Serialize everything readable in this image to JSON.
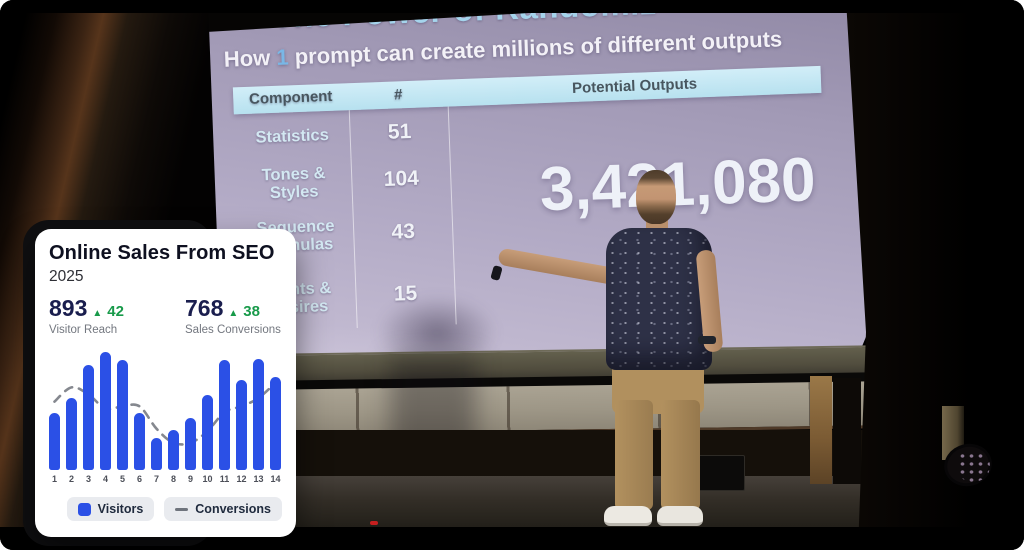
{
  "colors": {
    "bar_blue": "#2b50e6",
    "positive_green": "#189a4a",
    "stat_navy": "#1a1e4e",
    "conversion_line_grey": "#85888f",
    "slide_title_blue": "#a5d4ec",
    "slide_header_bg": "#c3e7f3",
    "screen_lavender": "#b9b1c9",
    "legend_pill_bg": "#e9ebef"
  },
  "icons": {
    "delta_up": "▲"
  },
  "scene": {
    "slide": {
      "title": "The Power of Randomiz",
      "subtitle": {
        "part1": "How",
        "highlight": "1",
        "part2": "prompt can create millions of different outputs"
      },
      "table": {
        "headers": [
          "Component",
          "#",
          "Potential Outputs"
        ],
        "rows": [
          {
            "label": "Statistics",
            "count": "51"
          },
          {
            "label": "Tones & Styles",
            "count": "104"
          },
          {
            "label": "Sequence\nFormulas",
            "count": "43"
          },
          {
            "label": "Points &\nDesires",
            "count": "15"
          }
        ],
        "big_number": "3,421,080"
      }
    }
  },
  "card": {
    "title": "Online Sales From SEO",
    "year": "2025",
    "stats": [
      {
        "value": "893",
        "delta": "42",
        "delta_direction": "up",
        "label": "Visitor Reach"
      },
      {
        "value": "768",
        "delta": "38",
        "delta_direction": "up",
        "label": "Sales Conversions"
      }
    ],
    "legend": [
      {
        "label": "Visitors",
        "swatch": "blue-square"
      },
      {
        "label": "Conversions",
        "swatch": "grey-dash"
      }
    ]
  },
  "chart_data": {
    "type": "bar",
    "title": "Online Sales From SEO",
    "subtitle": "2025",
    "categories": [
      "1",
      "2",
      "3",
      "4",
      "5",
      "6",
      "7",
      "8",
      "9",
      "10",
      "11",
      "12",
      "13",
      "14"
    ],
    "series": [
      {
        "name": "Visitors",
        "type": "bar",
        "color": "#2b50e6",
        "values": [
          48,
          61,
          89,
          100,
          93,
          48,
          27,
          34,
          44,
          64,
          93,
          76,
          94,
          79
        ]
      },
      {
        "name": "Conversions",
        "type": "line",
        "style": "dashed",
        "color": "#85888f",
        "values": [
          58,
          70,
          64,
          52,
          54,
          54,
          35,
          23,
          23,
          33,
          49,
          54,
          61,
          74
        ]
      }
    ],
    "xlabel": "",
    "ylabel": "",
    "ylim": [
      0,
      100
    ],
    "grid": false,
    "legend_position": "bottom",
    "value_scale": "relative (no y-axis shown in widget)"
  }
}
